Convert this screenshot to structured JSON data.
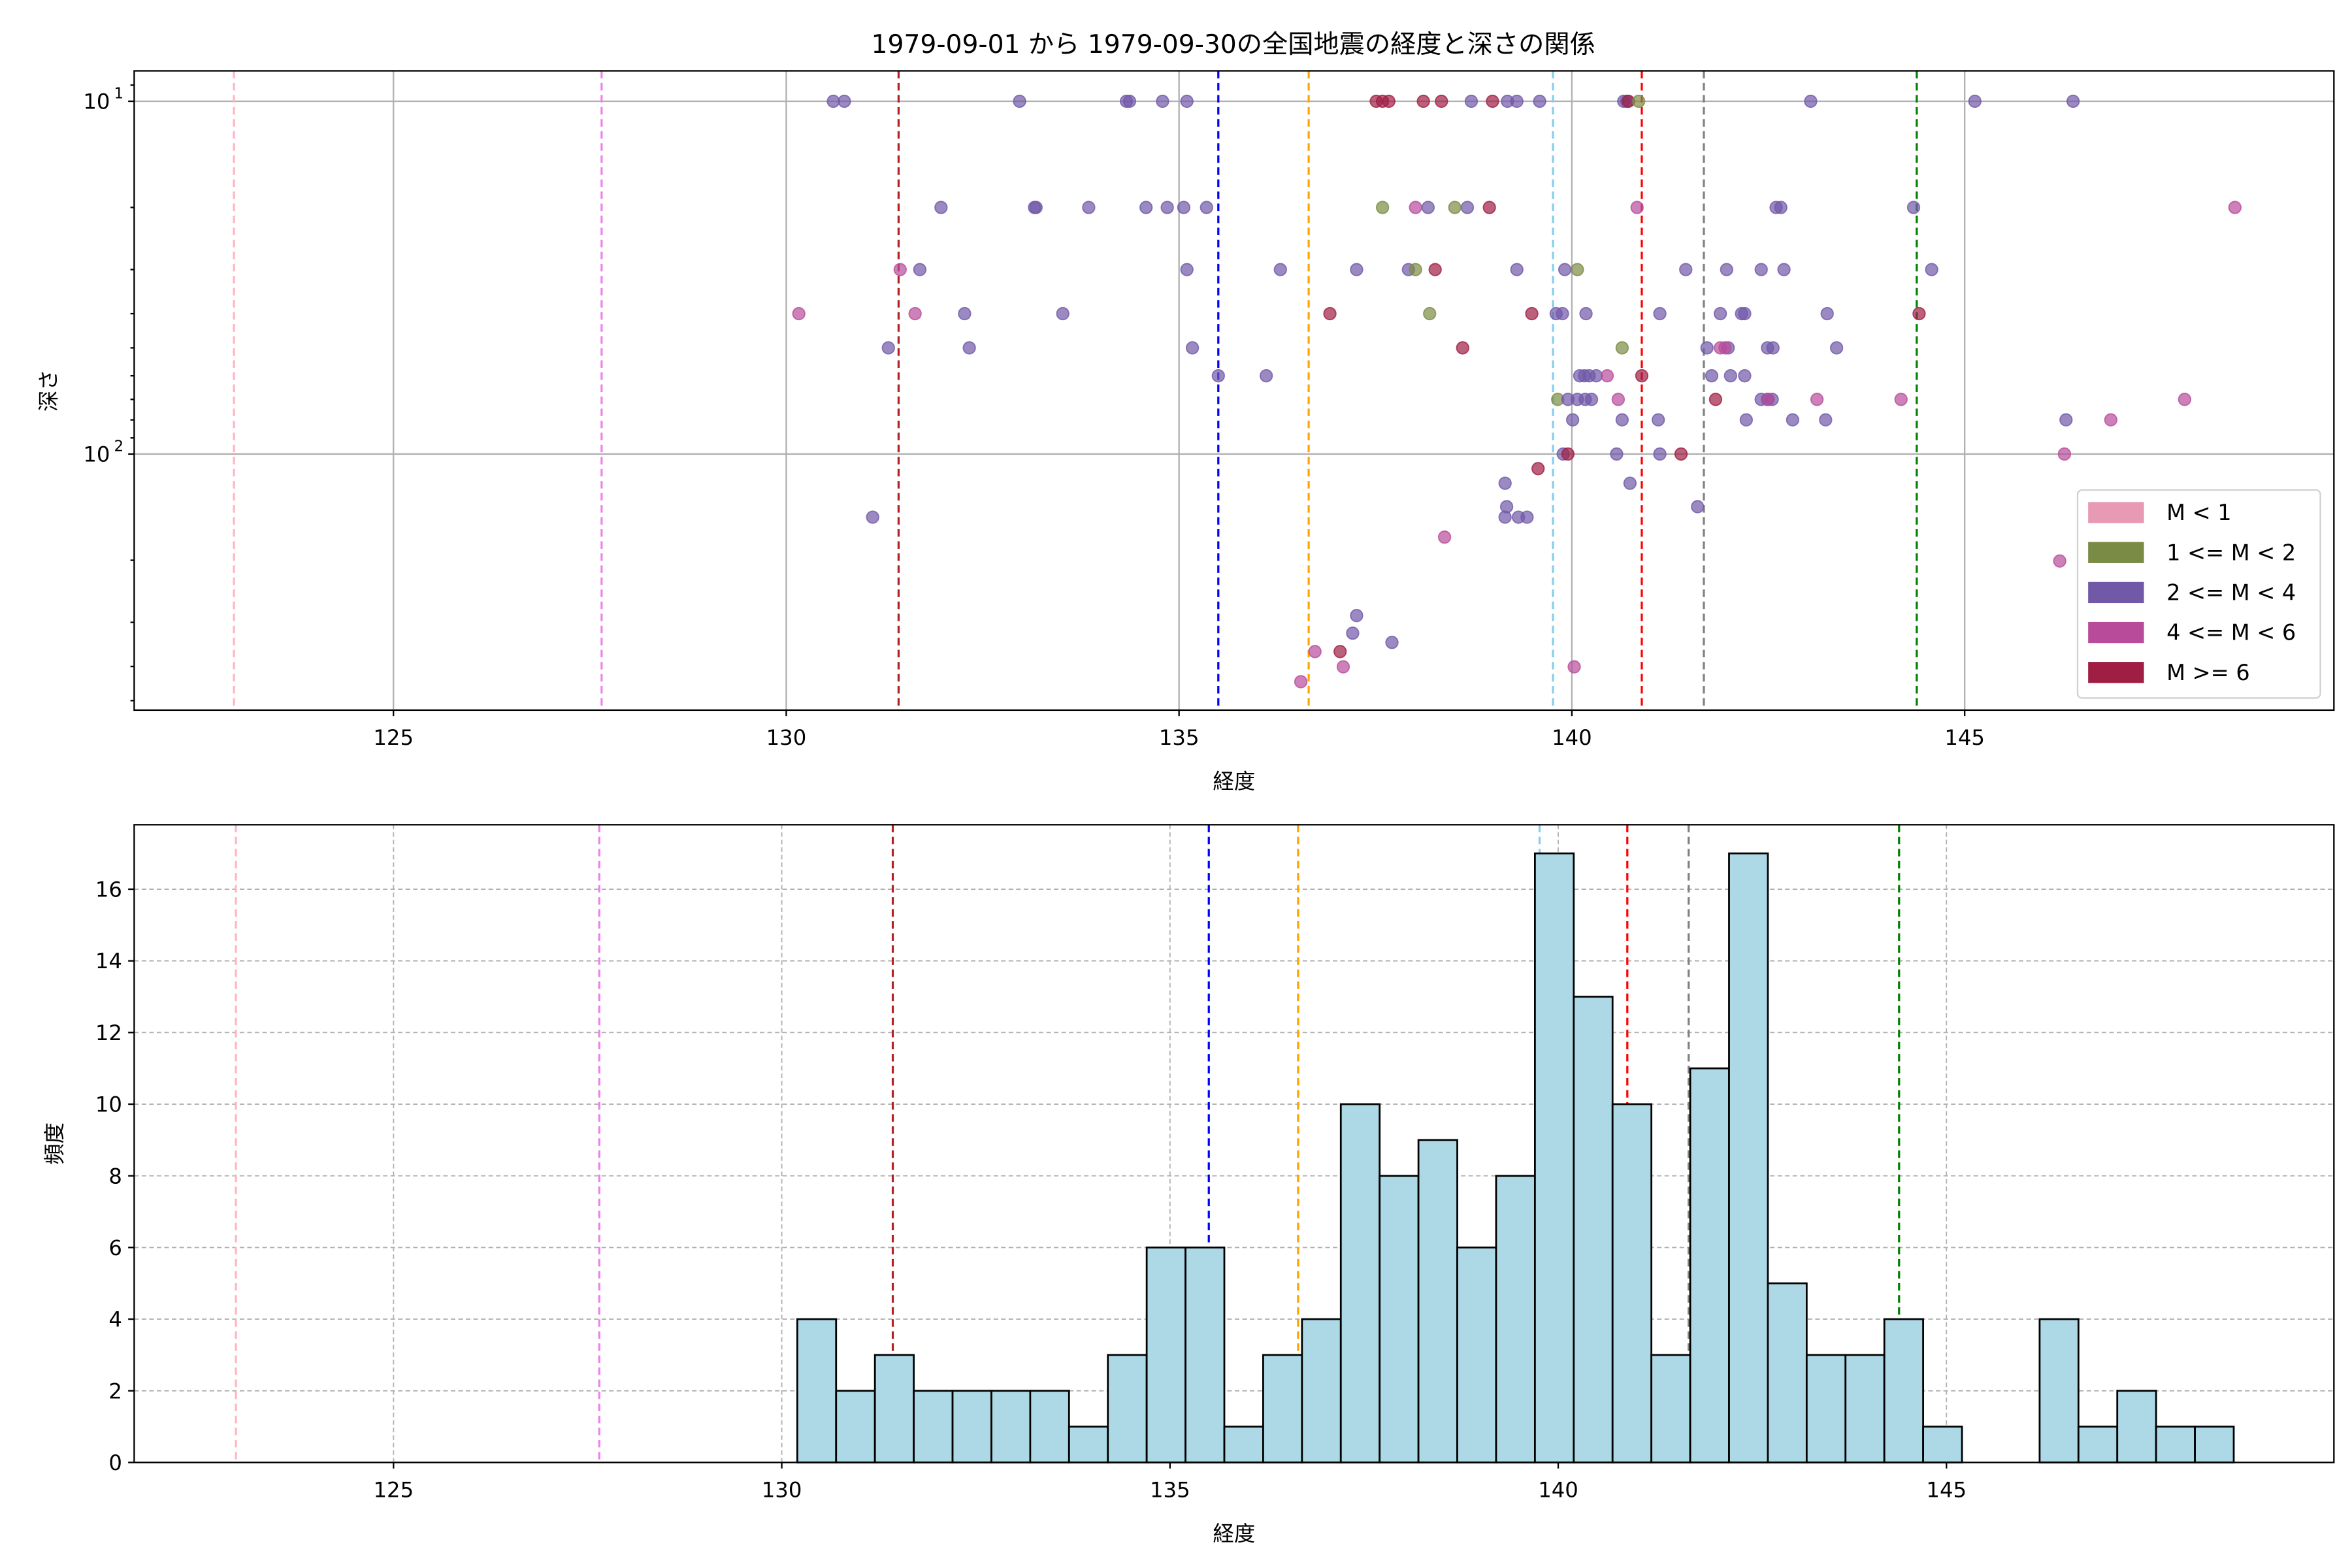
{
  "figure_title": "1979-09-01 から 1979-09-30の全国地震の経度と深さの関係",
  "colors": {
    "classes": [
      "#e899b4",
      "#7a8b45",
      "#7159a8",
      "#b84c9b",
      "#a01e44"
    ],
    "hist_fill": "#add8e6",
    "grid": "#b0b0b0"
  },
  "reference_lines": [
    {
      "lon": 122.97,
      "color": "#ffb6c1"
    },
    {
      "lon": 127.65,
      "color": "#ee82ee"
    },
    {
      "lon": 131.43,
      "color": "#b22222"
    },
    {
      "lon": 135.5,
      "color": "#0000ff"
    },
    {
      "lon": 136.65,
      "color": "#ffa500"
    },
    {
      "lon": 139.76,
      "color": "#87ceeb"
    },
    {
      "lon": 140.89,
      "color": "#ff0000"
    },
    {
      "lon": 141.68,
      "color": "#808080"
    },
    {
      "lon": 144.39,
      "color": "#008000"
    }
  ],
  "chart_data": [
    {
      "type": "scatter",
      "title": "1979-09-01 から 1979-09-30の全国地震の経度と深さの関係",
      "xlabel": "経度",
      "ylabel": "深さ",
      "xlim": [
        121.7,
        149.7
      ],
      "ylim": [
        532,
        8.2
      ],
      "yscale": "log",
      "y_inverted": true,
      "grid": true,
      "xticks": [
        125,
        130,
        135,
        140,
        145
      ],
      "xtick_labels": [
        "125",
        "130",
        "135",
        "140",
        "145"
      ],
      "yticks": [
        10,
        100
      ],
      "ytick_labels": [
        {
          "base": "10",
          "exp": "1"
        },
        {
          "base": "10",
          "exp": "2"
        }
      ],
      "legend": {
        "placement": "lower-right",
        "entries": [
          "M < 1",
          "1 <= M < 2",
          "2 <= M < 4",
          "4 <= M < 6",
          "M >= 6"
        ]
      },
      "points_format": "[longitude, depth, magnitude_class_index]",
      "points": [
        [
          130.6,
          10,
          2
        ],
        [
          130.74,
          10,
          2
        ],
        [
          132.97,
          10,
          2
        ],
        [
          134.33,
          10,
          2
        ],
        [
          134.37,
          10,
          2
        ],
        [
          134.79,
          10,
          2
        ],
        [
          135.1,
          10,
          2
        ],
        [
          138.72,
          10,
          2
        ],
        [
          139.18,
          10,
          2
        ],
        [
          139.3,
          10,
          2
        ],
        [
          139.59,
          10,
          2
        ],
        [
          140.66,
          10,
          2
        ],
        [
          140.7,
          10,
          2
        ],
        [
          143.04,
          10,
          2
        ],
        [
          145.13,
          10,
          2
        ],
        [
          146.38,
          10,
          2
        ],
        [
          137.51,
          10,
          4
        ],
        [
          137.59,
          10,
          4
        ],
        [
          137.67,
          10,
          4
        ],
        [
          138.11,
          10,
          4
        ],
        [
          138.34,
          10,
          4
        ],
        [
          138.99,
          10,
          4
        ],
        [
          140.72,
          10,
          4
        ],
        [
          140.85,
          10,
          1
        ],
        [
          131.97,
          20,
          2
        ],
        [
          133.16,
          20,
          2
        ],
        [
          133.18,
          20,
          2
        ],
        [
          133.85,
          20,
          2
        ],
        [
          134.58,
          20,
          2
        ],
        [
          134.85,
          20,
          2
        ],
        [
          135.06,
          20,
          2
        ],
        [
          135.35,
          20,
          2
        ],
        [
          138.17,
          20,
          2
        ],
        [
          138.67,
          20,
          2
        ],
        [
          142.6,
          20,
          2
        ],
        [
          142.66,
          20,
          2
        ],
        [
          144.35,
          20,
          2
        ],
        [
          137.59,
          20,
          1
        ],
        [
          138.51,
          20,
          1
        ],
        [
          138.01,
          20,
          3
        ],
        [
          140.83,
          20,
          3
        ],
        [
          148.44,
          20,
          3
        ],
        [
          138.95,
          20,
          4
        ],
        [
          131.45,
          30,
          3
        ],
        [
          131.7,
          30,
          2
        ],
        [
          135.1,
          30,
          2
        ],
        [
          136.29,
          30,
          2
        ],
        [
          137.26,
          30,
          2
        ],
        [
          137.92,
          30,
          2
        ],
        [
          139.3,
          30,
          2
        ],
        [
          139.91,
          30,
          2
        ],
        [
          141.45,
          30,
          2
        ],
        [
          141.97,
          30,
          2
        ],
        [
          142.41,
          30,
          2
        ],
        [
          142.7,
          30,
          2
        ],
        [
          144.58,
          30,
          2
        ],
        [
          138.01,
          30,
          1
        ],
        [
          140.07,
          30,
          1
        ],
        [
          138.26,
          30,
          4
        ],
        [
          130.16,
          40,
          3
        ],
        [
          131.64,
          40,
          3
        ],
        [
          132.27,
          40,
          2
        ],
        [
          133.52,
          40,
          2
        ],
        [
          139.8,
          40,
          2
        ],
        [
          139.88,
          40,
          2
        ],
        [
          140.18,
          40,
          2
        ],
        [
          141.12,
          40,
          2
        ],
        [
          141.89,
          40,
          2
        ],
        [
          142.16,
          40,
          2
        ],
        [
          142.2,
          40,
          2
        ],
        [
          143.25,
          40,
          2
        ],
        [
          138.19,
          40,
          1
        ],
        [
          136.92,
          40,
          4
        ],
        [
          139.49,
          40,
          4
        ],
        [
          144.42,
          40,
          4
        ],
        [
          131.3,
          50,
          2
        ],
        [
          132.33,
          50,
          2
        ],
        [
          135.17,
          50,
          2
        ],
        [
          141.72,
          50,
          2
        ],
        [
          141.99,
          50,
          2
        ],
        [
          142.49,
          50,
          2
        ],
        [
          142.56,
          50,
          2
        ],
        [
          143.37,
          50,
          2
        ],
        [
          140.64,
          50,
          1
        ],
        [
          138.61,
          50,
          4
        ],
        [
          141.89,
          50,
          3
        ],
        [
          141.95,
          50,
          3
        ],
        [
          135.5,
          60,
          2
        ],
        [
          136.11,
          60,
          2
        ],
        [
          140.1,
          60,
          2
        ],
        [
          140.16,
          60,
          2
        ],
        [
          140.22,
          60,
          2
        ],
        [
          140.31,
          60,
          2
        ],
        [
          141.78,
          60,
          2
        ],
        [
          142.02,
          60,
          2
        ],
        [
          142.2,
          60,
          2
        ],
        [
          140.45,
          60,
          3
        ],
        [
          140.89,
          60,
          4
        ],
        [
          139.82,
          70,
          1
        ],
        [
          139.95,
          70,
          2
        ],
        [
          140.07,
          70,
          2
        ],
        [
          140.17,
          70,
          2
        ],
        [
          140.25,
          70,
          2
        ],
        [
          142.41,
          70,
          2
        ],
        [
          142.49,
          70,
          2
        ],
        [
          142.55,
          70,
          2
        ],
        [
          140.59,
          70,
          3
        ],
        [
          143.12,
          70,
          3
        ],
        [
          144.19,
          70,
          3
        ],
        [
          147.8,
          70,
          3
        ],
        [
          142.5,
          70,
          3
        ],
        [
          141.83,
          70,
          4
        ],
        [
          140.01,
          80,
          2
        ],
        [
          140.64,
          80,
          2
        ],
        [
          141.1,
          80,
          2
        ],
        [
          142.22,
          80,
          2
        ],
        [
          142.81,
          80,
          2
        ],
        [
          143.23,
          80,
          2
        ],
        [
          146.29,
          80,
          2
        ],
        [
          146.86,
          80,
          3
        ],
        [
          139.89,
          100,
          2
        ],
        [
          140.57,
          100,
          2
        ],
        [
          141.12,
          100,
          2
        ],
        [
          139.95,
          100,
          4
        ],
        [
          141.39,
          100,
          4
        ],
        [
          146.27,
          100,
          3
        ],
        [
          139.57,
          110,
          4
        ],
        [
          139.15,
          121,
          2
        ],
        [
          140.74,
          121,
          2
        ],
        [
          139.17,
          141,
          2
        ],
        [
          141.6,
          141,
          2
        ],
        [
          139.15,
          151,
          2
        ],
        [
          139.32,
          151,
          2
        ],
        [
          139.43,
          151,
          2
        ],
        [
          131.1,
          151,
          2
        ],
        [
          138.38,
          172,
          3
        ],
        [
          146.21,
          201,
          3
        ],
        [
          137.26,
          287,
          2
        ],
        [
          137.21,
          322,
          2
        ],
        [
          137.71,
          342,
          2
        ],
        [
          136.73,
          363,
          3
        ],
        [
          137.05,
          363,
          4
        ],
        [
          137.09,
          401,
          3
        ],
        [
          140.03,
          401,
          3
        ],
        [
          136.55,
          442,
          3
        ]
      ]
    },
    {
      "type": "bar",
      "subtype": "histogram",
      "xlabel": "経度",
      "ylabel": "頻度",
      "xlim": [
        121.66,
        149.99
      ],
      "ylim": [
        0,
        17.8
      ],
      "grid": true,
      "xticks": [
        125,
        130,
        135,
        140,
        145
      ],
      "xtick_labels": [
        "125",
        "130",
        "135",
        "140",
        "145"
      ],
      "yticks": [
        0,
        2,
        4,
        6,
        8,
        10,
        12,
        14,
        16
      ],
      "ytick_labels": [
        "0",
        "2",
        "4",
        "6",
        "8",
        "10",
        "12",
        "14",
        "16"
      ],
      "bin_start": 130.2,
      "bin_width": 0.5,
      "values": [
        4,
        2,
        3,
        2,
        2,
        2,
        2,
        1,
        3,
        6,
        6,
        1,
        3,
        4,
        10,
        8,
        9,
        6,
        8,
        17,
        13,
        10,
        3,
        11,
        17,
        5,
        3,
        3,
        4,
        1,
        0,
        0,
        4,
        1,
        2,
        1,
        1
      ]
    }
  ]
}
